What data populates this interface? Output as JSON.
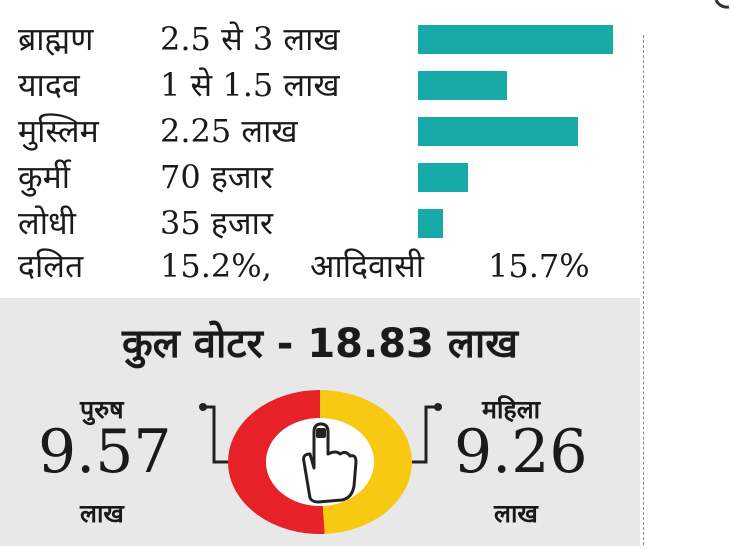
{
  "chart_data": {
    "type": "bar",
    "categories": [
      "ब्राह्मण",
      "यादव",
      "मुस्लिम",
      "कुर्मी",
      "लोधी"
    ],
    "value_labels": [
      "2.5 से 3 लाख",
      "1 से 1.5 लाख",
      "2.25 लाख",
      "70 हजार",
      "35 हजार"
    ],
    "values": [
      2.75,
      1.25,
      2.25,
      0.7,
      0.35
    ],
    "footnote": {
      "dalit_label": "दलित",
      "dalit_value": "15.2%,",
      "adivasi_label": "आदिवासी",
      "adivasi_value": "15.7%"
    },
    "total": "कुल वोटर - 18.83 लाख",
    "donut": {
      "type": "pie",
      "slices": [
        {
          "label": "पुरुष",
          "value": 9.57,
          "value_text": "9.57",
          "unit": "लाख",
          "color": "#e62127"
        },
        {
          "label": "महिला",
          "value": 9.26,
          "value_text": "9.26",
          "unit": "लाख",
          "color": "#f7c912"
        }
      ]
    },
    "colors": {
      "bar": "#17aaa8",
      "panel": "#e8e8e8"
    },
    "icons": [
      "voting-finger-icon"
    ]
  }
}
